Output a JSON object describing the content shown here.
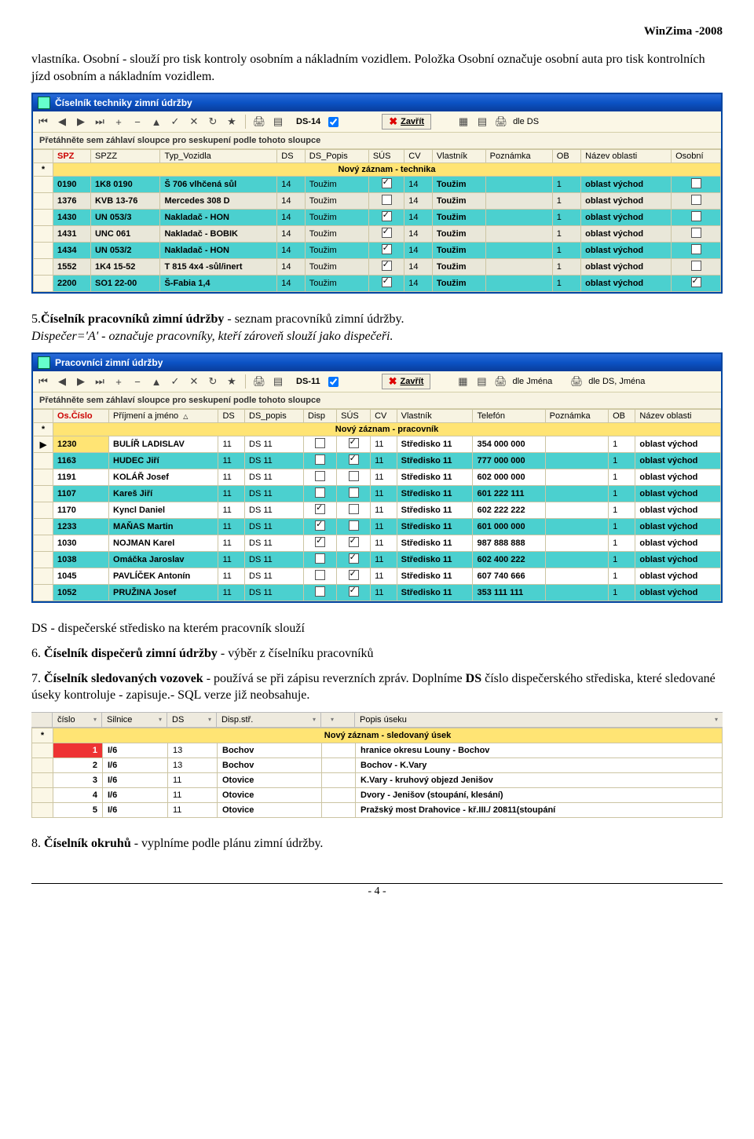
{
  "header_right": "WinZima -2008",
  "para1": "vlastníka. Osobní  - slouží pro tisk kontroly osobním a nákladním vozidlem. Položka Osobní označuje osobní auta pro tisk kontrolních jízd osobním a nákladním vozidlem.",
  "para2_lead": "5.",
  "para2_bold": "Číselník pracovníků zimní údržby",
  "para2_rest": " - seznam pracovníků zimní údržby.",
  "para2_italic": "Dispečer='A' - označuje pracovníky, kteří zároveň slouží jako dispečeři.",
  "para3": "DS -  dispečerské středisko na kterém pracovník slouží",
  "para4_lead": "6. ",
  "para4_bold": "Číselník dispečerů zimní údržby",
  "para4_rest": " - výběr z číselníku pracovníků",
  "para5_lead": "7. ",
  "para5_bold": "Číselník sledovaných vozovek",
  "para5_rest1": " - používá se při zápisu reverzních zpráv. Doplníme ",
  "para5_bold2": "DS",
  "para5_rest2": " číslo dispečerského střediska, které sledované úseky kontroluje - zapisuje.- SQL verze již neobsahuje.",
  "para6_lead": "8. ",
  "para6_bold": "Číselník okruhů",
  "para6_rest": " - vyplníme podle plánu zimní údržby.",
  "footer": "- 4 -",
  "win1": {
    "title": "Číselník techniky zimní údržby",
    "ds_label": "DS-14",
    "close": "Zavřít",
    "dle": "dle DS",
    "groupbar": "Přetáhněte sem záhlaví sloupce pro seskupení podle tohoto sloupce",
    "newrow": "Nový záznam - technika",
    "columns": [
      "SPZ",
      "SPZZ",
      "Typ_Vozidla",
      "DS",
      "DS_Popis",
      "SÚS",
      "CV",
      "Vlastník",
      "Poznámka",
      "OB",
      "Název oblasti",
      "Osobní"
    ],
    "rows": [
      {
        "c": [
          "0190",
          "1K8 0190",
          "Š 706 vlhčená sůl",
          "14",
          "Toužim",
          "on",
          "14",
          "Toužim",
          "",
          "1",
          "oblast východ",
          "off"
        ],
        "cls": "teal"
      },
      {
        "c": [
          "1376",
          "KVB 13-76",
          "Mercedes 308 D",
          "14",
          "Toužim",
          "off",
          "14",
          "Toužim",
          "",
          "1",
          "oblast východ",
          "off"
        ],
        "cls": "gray"
      },
      {
        "c": [
          "1430",
          "UN 053/3",
          "Nakladač - HON",
          "14",
          "Toužim",
          "on",
          "14",
          "Toužim",
          "",
          "1",
          "oblast východ",
          "off"
        ],
        "cls": "teal"
      },
      {
        "c": [
          "1431",
          "UNC 061",
          "Nakladač - BOBIK",
          "14",
          "Toužim",
          "on",
          "14",
          "Toužim",
          "",
          "1",
          "oblast východ",
          "off"
        ],
        "cls": "gray"
      },
      {
        "c": [
          "1434",
          "UN 053/2",
          "Nakladač - HON",
          "14",
          "Toužim",
          "on",
          "14",
          "Toužim",
          "",
          "1",
          "oblast východ",
          "off"
        ],
        "cls": "teal"
      },
      {
        "c": [
          "1552",
          "1K4 15-52",
          "T 815 4x4 -sůl/inert",
          "14",
          "Toužim",
          "on",
          "14",
          "Toužim",
          "",
          "1",
          "oblast východ",
          "off"
        ],
        "cls": "gray"
      },
      {
        "c": [
          "2200",
          "SO1 22-00",
          "Š-Fabia 1,4",
          "14",
          "Toužim",
          "on",
          "14",
          "Toužim",
          "",
          "1",
          "oblast východ",
          "on"
        ],
        "cls": "teal"
      }
    ]
  },
  "win2": {
    "title": "Pracovníci zimní údržby",
    "ds_label": "DS-11",
    "close": "Zavřít",
    "dle1": "dle Jména",
    "dle2": "dle DS, Jména",
    "groupbar": "Přetáhněte sem záhlaví sloupce pro seskupení podle tohoto sloupce",
    "newrow": "Nový záznam - pracovník",
    "columns": [
      "Os.Číslo",
      "Příjmení a jméno",
      "DS",
      "DS_popis",
      "Disp",
      "SÚS",
      "CV",
      "Vlastník",
      "Telefón",
      "Poznámka",
      "OB",
      "Název oblasti"
    ],
    "rows": [
      {
        "ind": "▶",
        "c": [
          "1230",
          "BULÍŘ LADISLAV",
          "11",
          "DS 11",
          "off",
          "on",
          "11",
          "Středisko 11",
          "354 000 000",
          "",
          "1",
          "oblast východ"
        ],
        "cls": "white",
        "sel": true
      },
      {
        "ind": "",
        "c": [
          "1163",
          "HUDEC Jiří",
          "11",
          "DS 11",
          "off",
          "on",
          "11",
          "Středisko 11",
          "777 000 000",
          "",
          "1",
          "oblast východ"
        ],
        "cls": "teal"
      },
      {
        "ind": "",
        "c": [
          "1191",
          "KOLÁŘ Josef",
          "11",
          "DS 11",
          "off",
          "off",
          "11",
          "Středisko 11",
          "602 000 000",
          "",
          "1",
          "oblast východ"
        ],
        "cls": "white"
      },
      {
        "ind": "",
        "c": [
          "1107",
          "Kareš Jiří",
          "11",
          "DS 11",
          "off",
          "off",
          "11",
          "Středisko 11",
          "601 222 111",
          "",
          "1",
          "oblast východ"
        ],
        "cls": "teal"
      },
      {
        "ind": "",
        "c": [
          "1170",
          "Kyncl Daniel",
          "11",
          "DS 11",
          "on",
          "off",
          "11",
          "Středisko 11",
          "602 222 222",
          "",
          "1",
          "oblast východ"
        ],
        "cls": "white"
      },
      {
        "ind": "",
        "c": [
          "1233",
          "MAŇAS Martin",
          "11",
          "DS 11",
          "on",
          "off",
          "11",
          "Středisko 11",
          "601 000 000",
          "",
          "1",
          "oblast východ"
        ],
        "cls": "teal"
      },
      {
        "ind": "",
        "c": [
          "1030",
          "NOJMAN Karel",
          "11",
          "DS 11",
          "on",
          "on",
          "11",
          "Středisko 11",
          "987 888 888",
          "",
          "1",
          "oblast východ"
        ],
        "cls": "white"
      },
      {
        "ind": "",
        "c": [
          "1038",
          "Omáčka Jaroslav",
          "11",
          "DS 11",
          "off",
          "on",
          "11",
          "Středisko 11",
          "602 400 222",
          "",
          "1",
          "oblast východ"
        ],
        "cls": "teal"
      },
      {
        "ind": "",
        "c": [
          "1045",
          "PAVLÍČEK Antonín",
          "11",
          "DS 11",
          "off",
          "on",
          "11",
          "Středisko 11",
          "607 740 666",
          "",
          "1",
          "oblast východ"
        ],
        "cls": "white"
      },
      {
        "ind": "",
        "c": [
          "1052",
          "PRUŽINA Josef",
          "11",
          "DS 11",
          "off",
          "on",
          "11",
          "Středisko 11",
          "353 111 111",
          "",
          "1",
          "oblast východ"
        ],
        "cls": "teal"
      }
    ]
  },
  "win3": {
    "columns": [
      "číslo",
      "Silnice",
      "DS",
      "Disp.stř.",
      "",
      "Popis úseku"
    ],
    "newrow": "Nový záznam - sledovaný úsek",
    "rows": [
      {
        "c": [
          "1",
          "I/6",
          "13",
          "Bochov",
          "",
          "hranice okresu Louny - Bochov"
        ],
        "red": true
      },
      {
        "c": [
          "2",
          "I/6",
          "13",
          "Bochov",
          "",
          "Bochov - K.Vary"
        ]
      },
      {
        "c": [
          "3",
          "I/6",
          "11",
          "Otovice",
          "",
          "K.Vary - kruhový objezd Jenišov"
        ]
      },
      {
        "c": [
          "4",
          "I/6",
          "11",
          "Otovice",
          "",
          "Dvory - Jenišov (stoupání, klesání)"
        ]
      },
      {
        "c": [
          "5",
          "I/6",
          "11",
          "Otovice",
          "",
          "Pražský most Drahovice - kř.III./ 20811(stoupání"
        ]
      }
    ],
    "col_widths": [
      "50px",
      "70px",
      "50px",
      "120px",
      "30px",
      "auto"
    ]
  },
  "icons": {
    "first": "⏮",
    "prev": "◀",
    "next": "▶",
    "last": "⏭",
    "plus": "+",
    "minus": "−",
    "edit": "▲",
    "check": "✓",
    "cancel": "✕",
    "refresh": "↻",
    "star": "★",
    "print": "🖨",
    "doc": "▤",
    "export": "▦"
  }
}
